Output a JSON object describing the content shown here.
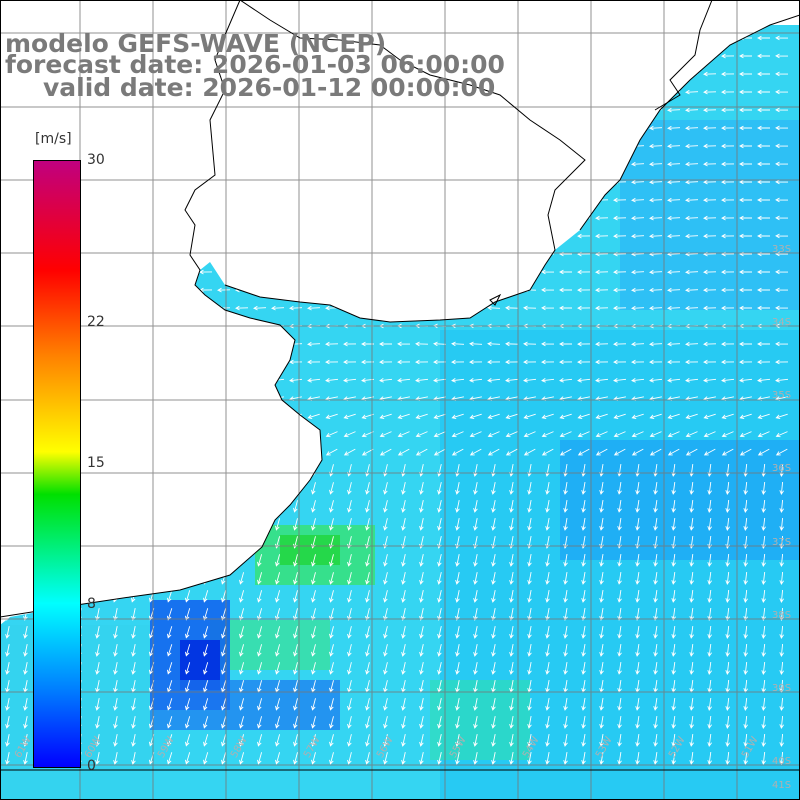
{
  "title": {
    "model": "modelo GEFS-WAVE (NCEP)",
    "forecast": "forecast date: 2026-01-03 06:00:00",
    "valid": "valid date: 2026-01-12 00:00:00"
  },
  "colorbar": {
    "unit": "[m/s]",
    "min": 0,
    "max": 30,
    "ticks": [
      {
        "label": "30",
        "value": 30
      },
      {
        "label": "22",
        "value": 22
      },
      {
        "label": "15",
        "value": 15
      },
      {
        "label": "8",
        "value": 8
      },
      {
        "label": "0",
        "value": 0
      }
    ],
    "colors": [
      "#0000ff",
      "#0080ff",
      "#00ffff",
      "#00e000",
      "#ffff00",
      "#ff8000",
      "#ff0000",
      "#c0007f"
    ]
  },
  "map": {
    "lat_labels": [
      "33S",
      "34S",
      "35S",
      "36S",
      "37S",
      "38S",
      "39S",
      "40S",
      "41S"
    ],
    "lon_labels": [
      "61W",
      "60W",
      "59W",
      "58W",
      "57W",
      "56W",
      "55W",
      "54W",
      "53W",
      "52W",
      "51W"
    ],
    "ocean_color": "#3ad8f0",
    "land_color": "#ffffff",
    "grid_color": "#888888",
    "arrow_color": "#ffffff"
  }
}
